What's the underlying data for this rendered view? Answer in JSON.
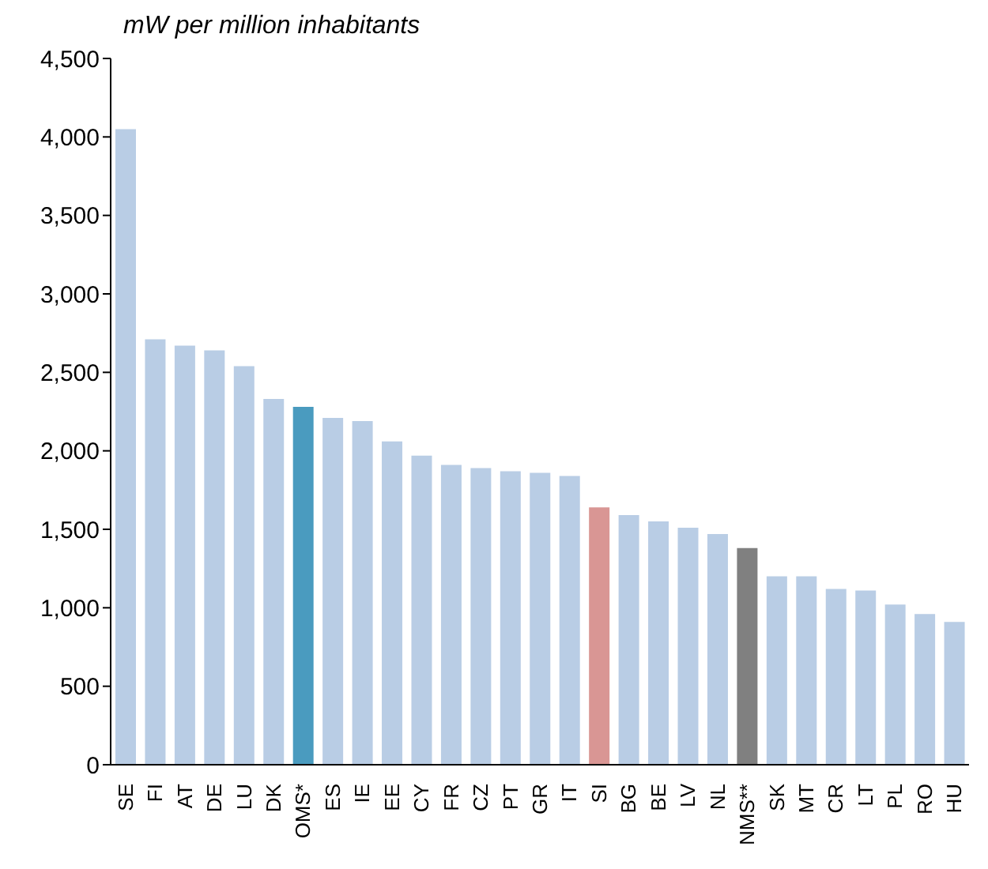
{
  "chart_data": {
    "type": "bar",
    "ylabel": "mW per million inhabitants",
    "categories": [
      "SE",
      "FI",
      "AT",
      "DE",
      "LU",
      "DK",
      "OMS*",
      "ES",
      "IE",
      "EE",
      "CY",
      "FR",
      "CZ",
      "PT",
      "GR",
      "IT",
      "SI",
      "BG",
      "BE",
      "LV",
      "NL",
      "NMS**",
      "SK",
      "MT",
      "CR",
      "LT",
      "PL",
      "RO",
      "HU"
    ],
    "values": [
      4050,
      2710,
      2670,
      2640,
      2540,
      2330,
      2280,
      2210,
      2190,
      2060,
      1970,
      1910,
      1890,
      1870,
      1860,
      1840,
      1640,
      1590,
      1550,
      1510,
      1470,
      1380,
      1200,
      1200,
      1120,
      1110,
      1020,
      960,
      910
    ],
    "colors": [
      "#b9cde5",
      "#b9cde5",
      "#b9cde5",
      "#b9cde5",
      "#b9cde5",
      "#b9cde5",
      "#4a9bbf",
      "#b9cde5",
      "#b9cde5",
      "#b9cde5",
      "#b9cde5",
      "#b9cde5",
      "#b9cde5",
      "#b9cde5",
      "#b9cde5",
      "#b9cde5",
      "#d99694",
      "#b9cde5",
      "#b9cde5",
      "#b9cde5",
      "#b9cde5",
      "#808080",
      "#b9cde5",
      "#b9cde5",
      "#b9cde5",
      "#b9cde5",
      "#b9cde5",
      "#b9cde5",
      "#b9cde5"
    ],
    "ylim": [
      0,
      4500
    ],
    "yticks": [
      0,
      500,
      {
        "value": 1000,
        "label": "1,000"
      },
      {
        "value": 1500,
        "label": "1,500"
      },
      {
        "value": 2000,
        "label": "2,000"
      },
      {
        "value": 2500,
        "label": "2,500"
      },
      {
        "value": 3000,
        "label": "3,000"
      },
      {
        "value": 3500,
        "label": "3,500"
      },
      {
        "value": 4000,
        "label": "4,000"
      },
      {
        "value": 4500,
        "label": "4,500"
      }
    ],
    "grid": false
  }
}
